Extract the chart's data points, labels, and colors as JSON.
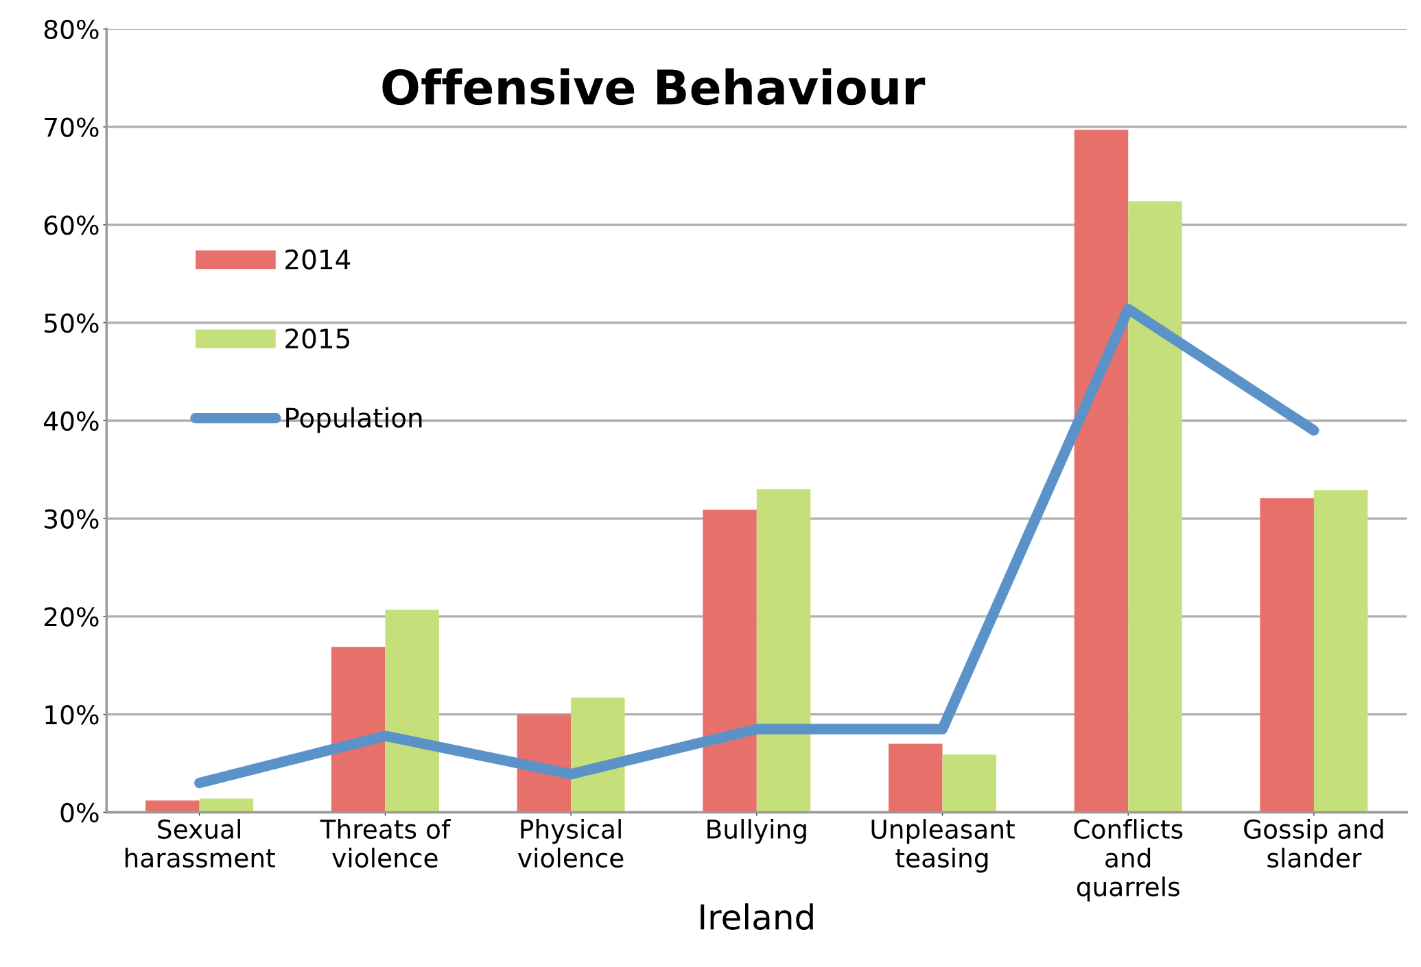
{
  "chart_data": {
    "type": "bar",
    "title": "Offensive Behaviour",
    "xlabel": "Ireland",
    "categories": [
      "Sexual\nharassment",
      "Threats of\nviolence",
      "Physical\nviolence",
      "Bullying",
      "Unpleasant\nteasing",
      "Conflicts\nand\nquarrels",
      "Gossip and\nslander"
    ],
    "series": [
      {
        "name": "2014",
        "color": "#e8706a",
        "values": [
          1.2,
          16.9,
          10.0,
          30.9,
          7.0,
          69.7,
          32.1
        ]
      },
      {
        "name": "2015",
        "color": "#c5e07a",
        "values": [
          1.4,
          20.7,
          11.7,
          33.0,
          5.9,
          62.4,
          32.9
        ]
      },
      {
        "name": "Population",
        "type": "line",
        "color": "#5b93c9",
        "values": [
          3.0,
          7.8,
          3.9,
          8.5,
          8.5,
          51.4,
          39.0
        ]
      }
    ],
    "ylim": [
      0,
      80
    ],
    "yticks": [
      {
        "value": 0,
        "label": "0%"
      },
      {
        "value": 10,
        "label": "10%"
      },
      {
        "value": 20,
        "label": "20%"
      },
      {
        "value": 30,
        "label": "30%"
      },
      {
        "value": 40,
        "label": "40%"
      },
      {
        "value": 50,
        "label": "50%"
      },
      {
        "value": 60,
        "label": "60%"
      },
      {
        "value": 70,
        "label": "70%"
      },
      {
        "value": 80,
        "label": "80%"
      }
    ],
    "grid": "y",
    "legend": "upper left"
  }
}
